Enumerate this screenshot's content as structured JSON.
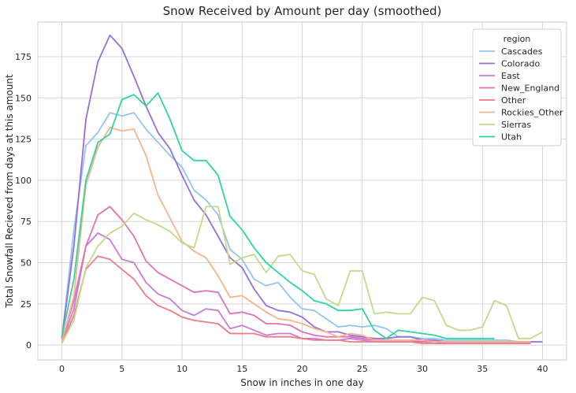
{
  "chart_data": {
    "type": "line",
    "title": "Snow Received by Amount per day (smoothed)",
    "xlabel": "Snow in inches in one day",
    "ylabel": "Total Snowfall Recieved from days at this amount",
    "xlim": [
      -2,
      42
    ],
    "ylim": [
      -9,
      196
    ],
    "xticks": [
      0,
      5,
      10,
      15,
      20,
      25,
      30,
      35,
      40
    ],
    "yticks": [
      0,
      25,
      50,
      75,
      100,
      125,
      150,
      175
    ],
    "grid": true,
    "legend": {
      "title": "region",
      "placement": "top-right"
    },
    "series": [
      {
        "name": "Cascades",
        "color": "#92c5f0",
        "x": [
          0,
          1,
          2,
          3,
          4,
          5,
          6,
          7,
          8,
          9,
          10,
          11,
          12,
          13,
          14,
          15,
          16,
          17,
          18,
          19,
          20,
          21,
          22,
          23,
          24,
          25,
          26,
          27,
          28,
          29,
          30,
          31,
          32,
          33,
          34,
          35,
          36,
          37,
          38,
          39
        ],
        "y": [
          4,
          70,
          121,
          129,
          141,
          139,
          141,
          131,
          123,
          115,
          108,
          94,
          88,
          79,
          58,
          52,
          40,
          36,
          38,
          29,
          22,
          21,
          16,
          11,
          12,
          11,
          12,
          10,
          5,
          5,
          4,
          4,
          3,
          3,
          3,
          3,
          3,
          3,
          2,
          2
        ]
      },
      {
        "name": "Colorado",
        "color": "#9370db",
        "x": [
          0,
          1,
          2,
          3,
          4,
          5,
          6,
          7,
          8,
          9,
          10,
          11,
          12,
          13,
          14,
          15,
          16,
          17,
          18,
          19,
          20,
          21,
          22,
          23,
          24,
          25,
          26,
          27,
          28,
          29,
          30,
          31,
          32,
          33,
          34,
          35,
          36,
          37,
          38,
          39,
          40
        ],
        "y": [
          4,
          60,
          137,
          172,
          188,
          180,
          163,
          145,
          129,
          119,
          103,
          88,
          79,
          66,
          53,
          47,
          34,
          24,
          21,
          20,
          17,
          11,
          8,
          8,
          6,
          5,
          4,
          4,
          5,
          5,
          3,
          3,
          2,
          2,
          2,
          2,
          2,
          2,
          2,
          2,
          2
        ]
      },
      {
        "name": "East",
        "color": "#c77bdb",
        "x": [
          0,
          1,
          2,
          3,
          4,
          5,
          6,
          7,
          8,
          9,
          10,
          11,
          12,
          13,
          14,
          15,
          16,
          17,
          18,
          19,
          20,
          21,
          22,
          23,
          24,
          25,
          26,
          27,
          28,
          29,
          30,
          31,
          32,
          33,
          34,
          35,
          36,
          37,
          38,
          39
        ],
        "y": [
          2,
          22,
          60,
          68,
          64,
          52,
          50,
          38,
          31,
          28,
          21,
          18,
          22,
          21,
          10,
          12,
          9,
          6,
          7,
          7,
          4,
          4,
          3,
          3,
          4,
          3,
          2,
          2,
          2,
          2,
          2,
          2,
          1,
          1,
          1,
          1,
          1,
          1,
          1,
          1
        ]
      },
      {
        "name": "New_England",
        "color": "#e072b1",
        "x": [
          0,
          1,
          2,
          3,
          4,
          5,
          6,
          7,
          8,
          9,
          10,
          11,
          12,
          13,
          14,
          15,
          16,
          17,
          18,
          19,
          20,
          21,
          22,
          23,
          24,
          25,
          26,
          27,
          28,
          29,
          30,
          31,
          32,
          33,
          34,
          35,
          36,
          37,
          38,
          39
        ],
        "y": [
          3,
          27,
          60,
          79,
          84,
          76,
          66,
          51,
          44,
          40,
          36,
          32,
          33,
          32,
          19,
          20,
          18,
          13,
          13,
          12,
          8,
          6,
          5,
          5,
          5,
          4,
          3,
          3,
          3,
          3,
          2,
          2,
          2,
          2,
          2,
          2,
          2,
          2,
          2,
          2
        ]
      },
      {
        "name": "Other",
        "color": "#f07a82",
        "x": [
          0,
          1,
          2,
          3,
          4,
          5,
          6,
          7,
          8,
          9,
          10,
          11,
          12,
          13,
          14,
          15,
          16,
          17,
          18,
          19,
          20,
          21,
          22,
          23,
          24,
          25,
          26,
          27,
          28,
          29,
          30,
          31,
          32,
          33,
          34,
          35,
          36,
          37,
          38,
          39
        ],
        "y": [
          1,
          18,
          46,
          54,
          52,
          46,
          40,
          30,
          24,
          21,
          17,
          15,
          14,
          13,
          7,
          7,
          7,
          5,
          5,
          5,
          4,
          3,
          3,
          3,
          2,
          2,
          2,
          2,
          2,
          2,
          1,
          1,
          1,
          1,
          1,
          1,
          1,
          1,
          1,
          1
        ]
      },
      {
        "name": "Rockies_Other",
        "color": "#f5b48c",
        "x": [
          0,
          1,
          2,
          3,
          4,
          5,
          6,
          7,
          8,
          9,
          10,
          11,
          12,
          13,
          14,
          15,
          16,
          17,
          18,
          19,
          20,
          21,
          22,
          23,
          24,
          25,
          26,
          27,
          28,
          29,
          30,
          31,
          32,
          33,
          34,
          35,
          36,
          37,
          38,
          39
        ],
        "y": [
          2,
          30,
          97,
          120,
          132,
          130,
          131,
          115,
          91,
          77,
          63,
          57,
          53,
          42,
          29,
          30,
          25,
          20,
          16,
          15,
          13,
          10,
          8,
          5,
          7,
          6,
          3,
          3,
          3,
          3,
          3,
          2,
          2,
          2,
          2,
          2,
          2,
          2,
          2,
          2
        ]
      },
      {
        "name": "Sierras",
        "color": "#c3d98c",
        "x": [
          0,
          1,
          2,
          3,
          4,
          5,
          6,
          7,
          8,
          9,
          10,
          11,
          12,
          13,
          14,
          15,
          16,
          17,
          18,
          19,
          20,
          21,
          22,
          23,
          24,
          25,
          26,
          27,
          28,
          29,
          30,
          31,
          32,
          33,
          34,
          35,
          36,
          37,
          38,
          39,
          40
        ],
        "y": [
          1,
          15,
          47,
          60,
          68,
          72,
          80,
          76,
          73,
          69,
          62,
          59,
          84,
          84,
          49,
          53,
          55,
          44,
          54,
          55,
          45,
          43,
          28,
          24,
          45,
          45,
          19,
          20,
          19,
          19,
          29,
          27,
          12,
          9,
          9,
          11,
          27,
          24,
          4,
          4,
          8
        ]
      },
      {
        "name": "Utah",
        "color": "#2fd69a",
        "x": [
          0,
          1,
          2,
          3,
          4,
          5,
          6,
          7,
          8,
          9,
          10,
          11,
          12,
          13,
          14,
          15,
          16,
          17,
          18,
          19,
          20,
          21,
          22,
          23,
          24,
          25,
          26,
          27,
          28,
          29,
          30,
          31,
          32,
          33,
          34,
          35,
          36
        ],
        "y": [
          5,
          40,
          100,
          123,
          128,
          149,
          152,
          145,
          153,
          137,
          118,
          112,
          112,
          103,
          78,
          70,
          59,
          50,
          44,
          38,
          33,
          27,
          25,
          21,
          21,
          22,
          9,
          4,
          9,
          8,
          7,
          6,
          4,
          4,
          4,
          4,
          4
        ]
      }
    ]
  }
}
